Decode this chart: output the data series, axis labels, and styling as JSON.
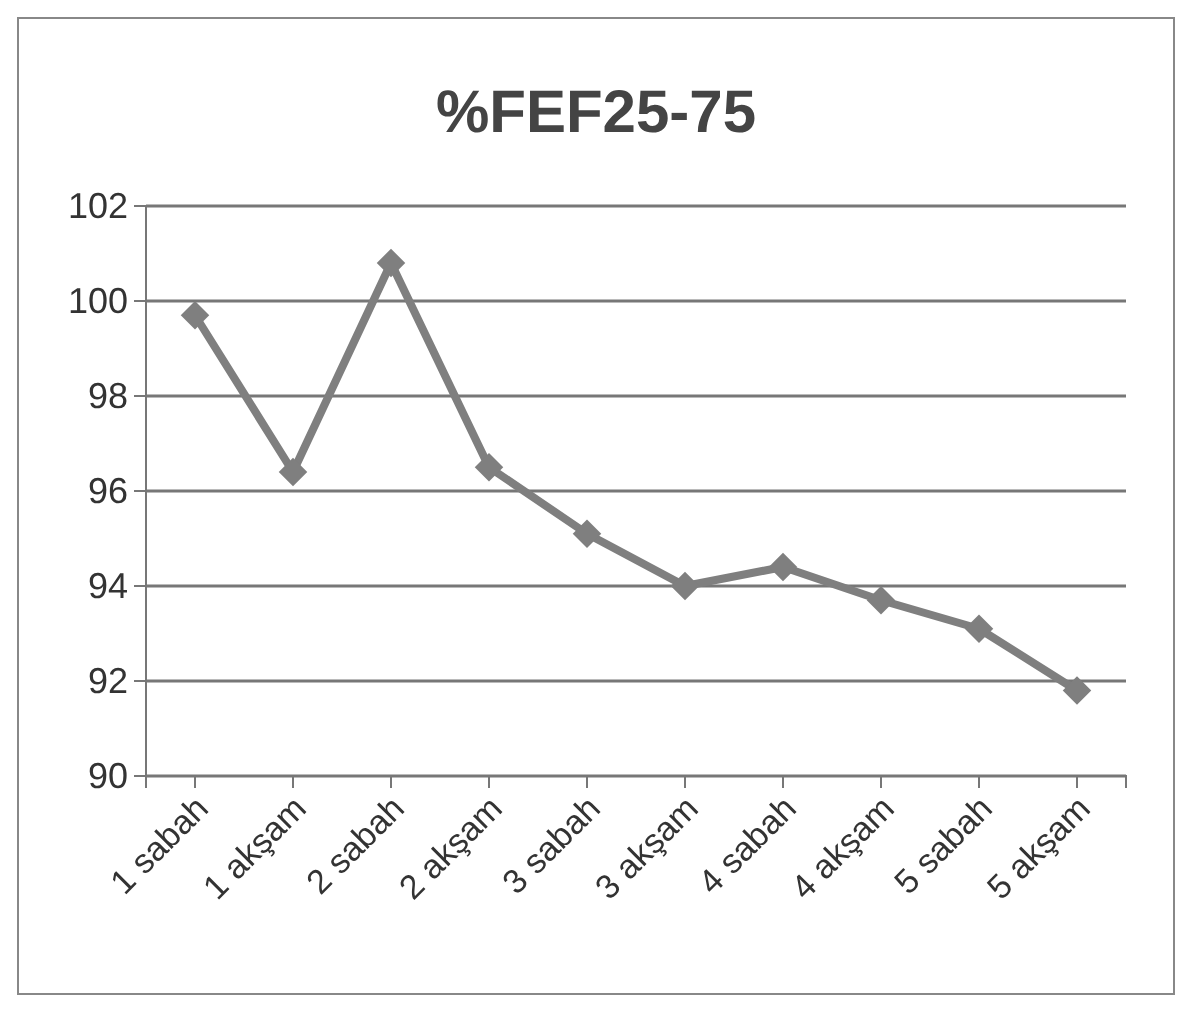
{
  "chart_data": {
    "type": "line",
    "title": "%FEF25-75",
    "categories": [
      "1 sabah",
      "1 akşam",
      "2 sabah",
      "2 akşam",
      "3 sabah",
      "3 akşam",
      "4 sabah",
      "4 akşam",
      "5 sabah",
      "5 akşam"
    ],
    "series": [
      {
        "color": "#7f7f7f",
        "values": [
          99.7,
          96.4,
          100.8,
          96.5,
          95.1,
          94.0,
          94.4,
          93.7,
          93.1,
          91.8
        ]
      }
    ],
    "ylim": [
      90,
      102
    ],
    "yticks": [
      90,
      92,
      94,
      96,
      98,
      100,
      102
    ],
    "grid": "y",
    "marker": "diamond",
    "line_style": "solid"
  }
}
